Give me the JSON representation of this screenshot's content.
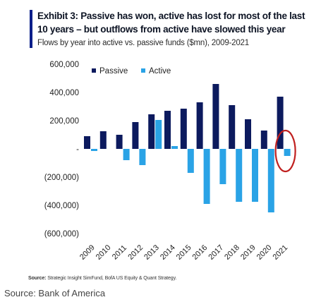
{
  "header": {
    "title": "Exhibit 3: Passive has won, active has lost for most of the last 10 years – but outflows from active have slowed this year",
    "subtitle": "Flows by year into active vs. passive funds ($mn), 2009-2021"
  },
  "footer": {
    "source_label": "Source:",
    "source_text": "Strategic Insight SimFund, BofA US Equity & Quant Strategy.",
    "caption": "Source: Bank of America"
  },
  "colors": {
    "passive": "#0c1a5e",
    "active": "#2aa3e6",
    "highlight_circle": "#c0201f",
    "accent": "#0a1f8a"
  },
  "chart_data": {
    "type": "bar",
    "categories": [
      "2009",
      "2010",
      "2011",
      "2012",
      "2013",
      "2014",
      "2015",
      "2016",
      "2017",
      "2018",
      "2019",
      "2020",
      "2021"
    ],
    "series": [
      {
        "name": "Passive",
        "values": [
          90000,
          125000,
          100000,
          190000,
          245000,
          270000,
          285000,
          330000,
          460000,
          310000,
          210000,
          130000,
          370000
        ]
      },
      {
        "name": "Active",
        "values": [
          -15000,
          0,
          -80000,
          -115000,
          205000,
          20000,
          -170000,
          -390000,
          -250000,
          -375000,
          -375000,
          -450000,
          -50000
        ]
      }
    ],
    "y_ticks": [
      "600,000",
      "400,000",
      "200,000",
      "-",
      "(200,000)",
      "(400,000)",
      "(600,000)"
    ],
    "y_tick_values": [
      600000,
      400000,
      200000,
      0,
      -200000,
      -400000,
      -600000
    ],
    "ylim": [
      -600000,
      600000
    ],
    "legend_position": "top-left",
    "grid": false,
    "annotation": "red circle around 2021"
  }
}
